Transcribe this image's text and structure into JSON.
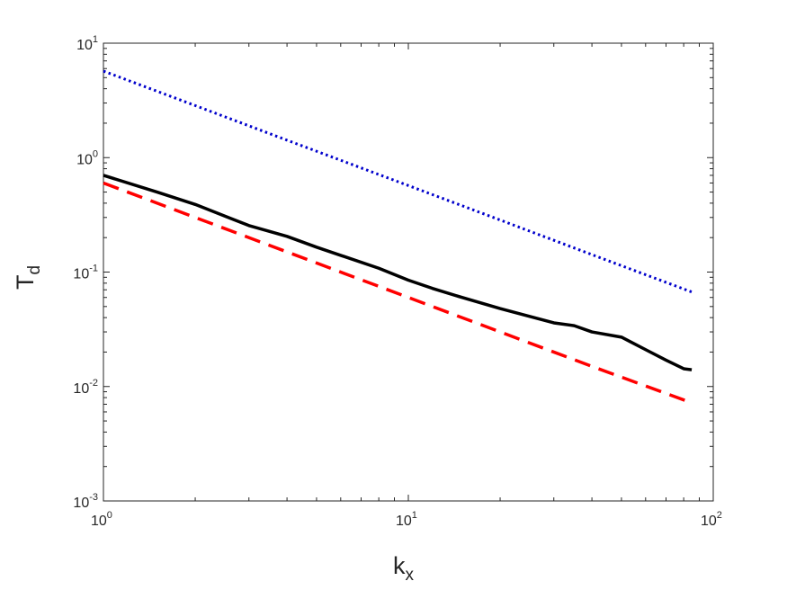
{
  "chart_data": {
    "type": "line",
    "xlabel": "k",
    "xlabel_sub": "x",
    "ylabel": "T",
    "ylabel_sub": "d",
    "xscale": "log",
    "yscale": "log",
    "xlim": [
      1,
      100
    ],
    "ylim": [
      0.001,
      10
    ],
    "grid": false,
    "x_ticks": [
      {
        "value": 1,
        "base": "10",
        "exp": "0"
      },
      {
        "value": 10,
        "base": "10",
        "exp": "1"
      },
      {
        "value": 100,
        "base": "10",
        "exp": "2"
      }
    ],
    "y_ticks": [
      {
        "value": 0.001,
        "base": "10",
        "exp": "-3"
      },
      {
        "value": 0.01,
        "base": "10",
        "exp": "-2"
      },
      {
        "value": 0.1,
        "base": "10",
        "exp": "-1"
      },
      {
        "value": 1,
        "base": "10",
        "exp": "0"
      },
      {
        "value": 10,
        "base": "10",
        "exp": "1"
      }
    ],
    "series": [
      {
        "style": "dotted",
        "color": "#0000cc",
        "x": [
          1,
          2,
          4,
          10,
          20,
          40,
          85
        ],
        "y": [
          5.7,
          2.85,
          1.42,
          0.57,
          0.285,
          0.142,
          0.067
        ]
      },
      {
        "style": "solid",
        "color": "#000000",
        "x": [
          1,
          1.5,
          2,
          3,
          4,
          5,
          6,
          8,
          10,
          12,
          15,
          20,
          25,
          30,
          35,
          40,
          50,
          60,
          70,
          80,
          85
        ],
        "y": [
          0.7,
          0.5,
          0.39,
          0.255,
          0.205,
          0.165,
          0.14,
          0.108,
          0.085,
          0.072,
          0.06,
          0.048,
          0.041,
          0.036,
          0.034,
          0.03,
          0.027,
          0.021,
          0.017,
          0.0143,
          0.014
        ]
      },
      {
        "style": "dashed",
        "color": "#ff0000",
        "x": [
          1,
          2,
          4,
          10,
          20,
          40,
          85
        ],
        "y": [
          0.6,
          0.3,
          0.15,
          0.06,
          0.03,
          0.015,
          0.0072
        ]
      }
    ]
  }
}
